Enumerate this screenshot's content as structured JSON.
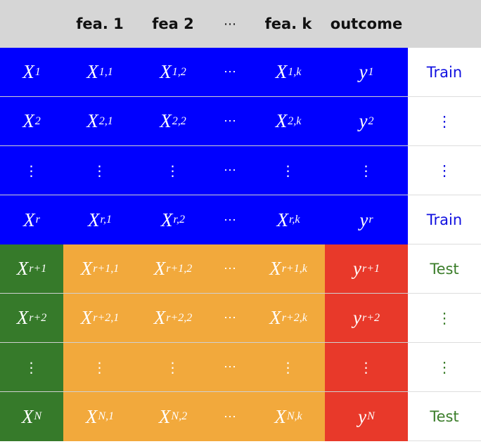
{
  "header": {
    "col0": "",
    "col1": "fea. 1",
    "col2": "fea 2",
    "col3": "⋯",
    "col4": "fea. k",
    "col5": "outcome",
    "col6": ""
  },
  "rows": [
    {
      "id": [
        "X",
        "1"
      ],
      "f1": [
        "X",
        "1,1"
      ],
      "f2": [
        "X",
        "1,2"
      ],
      "dots": "⋯",
      "fk": [
        "X",
        "1,k"
      ],
      "y": [
        "y",
        "1"
      ],
      "label": "Train"
    },
    {
      "id": [
        "X",
        "2"
      ],
      "f1": [
        "X",
        "2,1"
      ],
      "f2": [
        "X",
        "2,2"
      ],
      "dots": "⋯",
      "fk": [
        "X",
        "2,k"
      ],
      "y": [
        "y",
        "2"
      ],
      "label": "⋮"
    },
    {
      "id": [
        "⋮",
        ""
      ],
      "f1": [
        "⋮",
        ""
      ],
      "f2": [
        "⋮",
        ""
      ],
      "dots": "⋯",
      "fk": [
        "⋮",
        ""
      ],
      "y": [
        "⋮",
        ""
      ],
      "label": "⋮"
    },
    {
      "id": [
        "X",
        "r"
      ],
      "f1": [
        "X",
        "r,1"
      ],
      "f2": [
        "X",
        "r,2"
      ],
      "dots": "⋯",
      "fk": [
        "X",
        "r,k"
      ],
      "y": [
        "y",
        "r"
      ],
      "label": "Train"
    },
    {
      "id": [
        "X",
        "r+1"
      ],
      "f1": [
        "X",
        "r+1,1"
      ],
      "f2": [
        "X",
        "r+1,2"
      ],
      "dots": "⋯",
      "fk": [
        "X",
        "r+1,k"
      ],
      "y": [
        "y",
        "r+1"
      ],
      "label": "Test"
    },
    {
      "id": [
        "X",
        "r+2"
      ],
      "f1": [
        "X",
        "r+2,1"
      ],
      "f2": [
        "X",
        "r+2,2"
      ],
      "dots": "⋯",
      "fk": [
        "X",
        "r+2,k"
      ],
      "y": [
        "y",
        "r+2"
      ],
      "label": "⋮"
    },
    {
      "id": [
        "⋮",
        ""
      ],
      "f1": [
        "⋮",
        ""
      ],
      "f2": [
        "⋮",
        ""
      ],
      "dots": "⋯",
      "fk": [
        "⋮",
        ""
      ],
      "y": [
        "⋮",
        ""
      ],
      "label": "⋮"
    },
    {
      "id": [
        "X",
        "N"
      ],
      "f1": [
        "X",
        "N,1"
      ],
      "f2": [
        "X",
        "N,2"
      ],
      "dots": "⋯",
      "fk": [
        "X",
        "N,k"
      ],
      "y": [
        "y",
        "N"
      ],
      "label": "Test"
    }
  ],
  "colors": {
    "train": "#0000ff",
    "test_id": "#367a2a",
    "test_features": "#f2a93c",
    "test_outcome": "#e8392a",
    "header_bg": "#d6d6d6",
    "train_label": "#1010e0",
    "test_label": "#3b7d2a"
  }
}
